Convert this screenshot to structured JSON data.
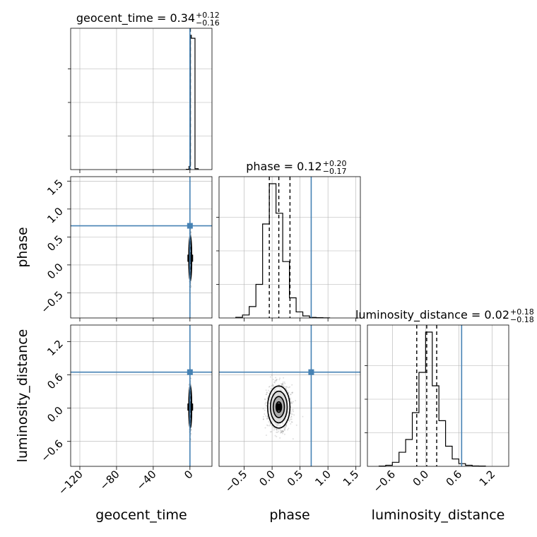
{
  "colors": {
    "truth": "#4682b4",
    "hist": "#000000",
    "grid": "#b0b0b0",
    "scatter": "#555555",
    "contour": "#000000",
    "background": "#ffffff"
  },
  "chart_data": {
    "type": "corner",
    "parameters": [
      "geocent_time",
      "phase",
      "luminosity_distance"
    ],
    "axis_labels": [
      "geocent_time",
      "phase",
      "luminosity_distance"
    ],
    "ranges": [
      [
        -130,
        24
      ],
      [
        -0.95,
        1.58
      ],
      [
        -1.05,
        1.5
      ]
    ],
    "ticks": [
      {
        "values": [
          -120,
          -80,
          -40,
          0
        ],
        "labels": [
          "−120",
          "−80",
          "−40",
          "0"
        ]
      },
      {
        "values": [
          -0.5,
          0.0,
          0.5,
          1.0,
          1.5
        ],
        "labels": [
          "−0.5",
          "0.0",
          "0.5",
          "1.0",
          "1.5"
        ]
      },
      {
        "values": [
          -0.6,
          0.0,
          0.6,
          1.2
        ],
        "labels": [
          "−0.6",
          "0.0",
          "0.6",
          "1.2"
        ]
      }
    ],
    "truths": [
      0.0,
      0.7,
      0.65
    ],
    "titles": [
      {
        "prefix": "geocent_time = 0.34",
        "sup": "+0.12",
        "sub": "−0.16"
      },
      {
        "prefix": "phase = 0.12",
        "sup": "+0.20",
        "sub": "−0.17"
      },
      {
        "prefix": "luminosity_distance = 0.02",
        "sup": "+0.18",
        "sub": "−0.18"
      }
    ],
    "quantiles": [
      [
        0.18,
        0.34,
        0.46
      ],
      [
        -0.05,
        0.12,
        0.32
      ],
      [
        -0.16,
        0.02,
        0.2
      ]
    ],
    "histograms": [
      {
        "bin_edges": [
          -4,
          -1,
          0.5,
          1.5,
          5.5,
          9
        ],
        "counts": [
          2,
          22,
          920,
          900,
          6
        ]
      },
      {
        "bin_edges": [
          -0.65,
          -0.53,
          -0.41,
          -0.29,
          -0.17,
          -0.05,
          0.07,
          0.19,
          0.31,
          0.43,
          0.55,
          0.67,
          0.79,
          0.91,
          1.03
        ],
        "counts": [
          5,
          22,
          85,
          250,
          700,
          1000,
          780,
          420,
          150,
          45,
          15,
          4,
          2,
          1
        ]
      },
      {
        "bin_edges": [
          -0.84,
          -0.72,
          -0.6,
          -0.48,
          -0.36,
          -0.24,
          -0.12,
          0.0,
          0.12,
          0.24,
          0.36,
          0.48,
          0.6,
          0.72,
          0.84,
          0.96,
          1.08
        ],
        "counts": [
          2,
          8,
          30,
          105,
          200,
          400,
          700,
          1000,
          600,
          340,
          150,
          55,
          20,
          8,
          3,
          2
        ]
      }
    ],
    "scatter_2d": [
      {
        "x_param": 0,
        "y_param": 1,
        "center": [
          0.34,
          0.12
        ],
        "spread": [
          0.8,
          0.2
        ]
      },
      {
        "x_param": 0,
        "y_param": 2,
        "center": [
          0.34,
          0.02
        ],
        "spread": [
          0.8,
          0.19
        ]
      },
      {
        "x_param": 1,
        "y_param": 2,
        "center": [
          0.12,
          0.02
        ],
        "spread": [
          0.2,
          0.19
        ]
      }
    ],
    "grid": true
  }
}
